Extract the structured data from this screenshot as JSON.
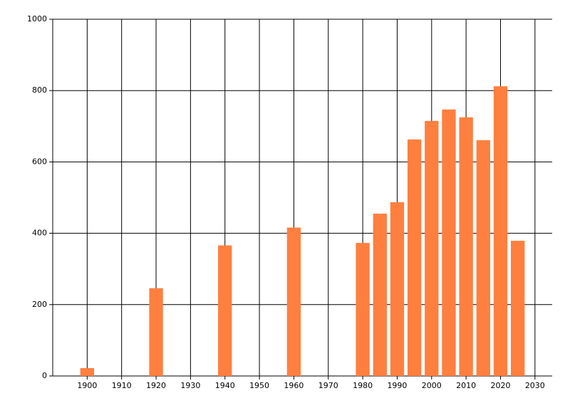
{
  "chart_data": {
    "type": "bar",
    "x": [
      1900,
      1920,
      1940,
      1960,
      1980,
      1985,
      1990,
      1995,
      2000,
      2005,
      2010,
      2015,
      2020,
      2025
    ],
    "values": [
      22,
      246,
      366,
      416,
      373,
      455,
      487,
      663,
      715,
      747,
      725,
      661,
      812,
      379
    ],
    "bar_width": 4,
    "color": "#ff7f3f",
    "xlim": [
      1890,
      2035
    ],
    "xticks": [
      1900,
      1910,
      1920,
      1930,
      1940,
      1950,
      1960,
      1970,
      1980,
      1990,
      2000,
      2010,
      2020,
      2030
    ],
    "ylim": [
      0,
      1000
    ],
    "yticks": [
      0,
      200,
      400,
      600,
      800,
      1000
    ],
    "grid": true
  }
}
